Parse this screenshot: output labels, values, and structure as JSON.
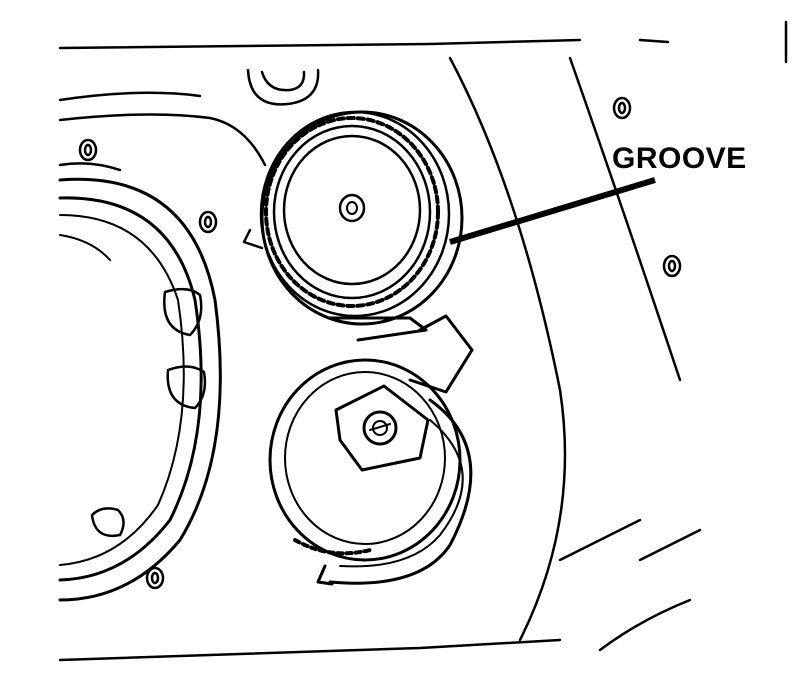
{
  "figure": {
    "callout_label": "GROOVE",
    "ink_color": "#000000",
    "paper_color": "#ffffff"
  }
}
